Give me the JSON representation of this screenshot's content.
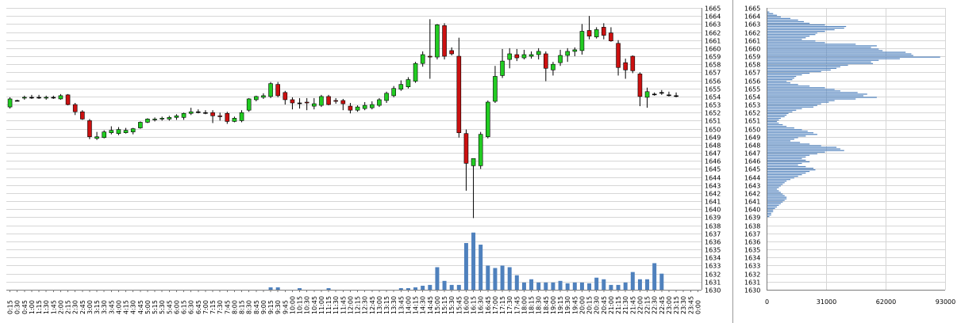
{
  "chart_data": [
    {
      "type": "candlestick",
      "title": "",
      "xlabel": "",
      "ylabel": "",
      "ylim": [
        1630,
        1665
      ],
      "grid": true,
      "y_ticks": [
        1630,
        1631,
        1632,
        1633,
        1634,
        1635,
        1636,
        1637,
        1638,
        1639,
        1640,
        1641,
        1642,
        1643,
        1644,
        1645,
        1646,
        1647,
        1648,
        1649,
        1650,
        1651,
        1652,
        1653,
        1654,
        1655,
        1656,
        1657,
        1658,
        1659,
        1660,
        1661,
        1662,
        1663,
        1664,
        1665
      ],
      "colors": {
        "up": "#22cc22",
        "down": "#cc1111",
        "doji": "#000000",
        "volume": "#4f81bd",
        "grid": "#d6d6d6"
      },
      "x_labels": [
        "0:15",
        "0:30",
        "0:45",
        "1:00",
        "1:15",
        "1:30",
        "1:45",
        "2:00",
        "2:15",
        "2:30",
        "2:45",
        "3:00",
        "3:15",
        "3:30",
        "3:45",
        "4:00",
        "4:15",
        "4:30",
        "4:45",
        "5:00",
        "5:15",
        "5:30",
        "5:45",
        "6:00",
        "6:15",
        "6:30",
        "6:45",
        "7:00",
        "7:15",
        "7:30",
        "7:45",
        "8:00",
        "8:15",
        "8:30",
        "8:45",
        "9:00",
        "9:15",
        "9:30",
        "9:45",
        "10:00",
        "10:15",
        "10:30",
        "10:45",
        "11:00",
        "11:15",
        "11:30",
        "11:45",
        "12:00",
        "12:15",
        "12:30",
        "12:45",
        "13:00",
        "13:15",
        "13:30",
        "13:45",
        "14:00",
        "14:15",
        "14:30",
        "14:45",
        "15:00",
        "15:15",
        "15:30",
        "15:45",
        "16:00",
        "16:15",
        "16:30",
        "16:45",
        "17:00",
        "17:15",
        "17:30",
        "17:45",
        "18:00",
        "18:15",
        "18:30",
        "18:45",
        "19:00",
        "19:15",
        "19:30",
        "19:45",
        "20:00",
        "20:15",
        "20:30",
        "20:45",
        "21:00",
        "21:15",
        "21:30",
        "21:45",
        "22:00",
        "22:15",
        "22:30",
        "22:45",
        "23:00",
        "23:15",
        "23:30",
        "23:45",
        "0:00"
      ],
      "candles": [
        {
          "o": 1652.7,
          "h": 1653.9,
          "l": 1652.5,
          "c": 1653.7
        },
        {
          "o": 1653.5,
          "h": 1653.6,
          "l": 1653.4,
          "c": 1653.5
        },
        {
          "o": 1653.8,
          "h": 1654.1,
          "l": 1653.6,
          "c": 1653.9
        },
        {
          "o": 1653.9,
          "h": 1654.2,
          "l": 1653.7,
          "c": 1653.9
        },
        {
          "o": 1653.9,
          "h": 1654.2,
          "l": 1653.7,
          "c": 1653.9
        },
        {
          "o": 1653.8,
          "h": 1654.1,
          "l": 1653.6,
          "c": 1653.9
        },
        {
          "o": 1653.9,
          "h": 1654.1,
          "l": 1653.7,
          "c": 1653.9
        },
        {
          "o": 1653.7,
          "h": 1654.3,
          "l": 1653.6,
          "c": 1654.1
        },
        {
          "o": 1654.2,
          "h": 1654.3,
          "l": 1652.9,
          "c": 1653.0
        },
        {
          "o": 1653.0,
          "h": 1653.2,
          "l": 1651.7,
          "c": 1652.1
        },
        {
          "o": 1652.1,
          "h": 1652.3,
          "l": 1651.1,
          "c": 1651.2
        },
        {
          "o": 1651.0,
          "h": 1651.2,
          "l": 1648.7,
          "c": 1649.0
        },
        {
          "o": 1648.8,
          "h": 1649.6,
          "l": 1648.6,
          "c": 1649.0
        },
        {
          "o": 1648.9,
          "h": 1649.8,
          "l": 1648.8,
          "c": 1649.6
        },
        {
          "o": 1649.5,
          "h": 1650.3,
          "l": 1649.3,
          "c": 1649.8
        },
        {
          "o": 1649.4,
          "h": 1650.2,
          "l": 1649.2,
          "c": 1649.9
        },
        {
          "o": 1649.5,
          "h": 1650.1,
          "l": 1649.4,
          "c": 1649.8
        },
        {
          "o": 1649.6,
          "h": 1650.1,
          "l": 1649.3,
          "c": 1650.0
        },
        {
          "o": 1650.1,
          "h": 1650.9,
          "l": 1650.0,
          "c": 1650.8
        },
        {
          "o": 1650.8,
          "h": 1651.3,
          "l": 1650.7,
          "c": 1651.2
        },
        {
          "o": 1651.1,
          "h": 1651.4,
          "l": 1650.9,
          "c": 1651.2
        },
        {
          "o": 1651.2,
          "h": 1651.5,
          "l": 1651.0,
          "c": 1651.3
        },
        {
          "o": 1651.2,
          "h": 1651.6,
          "l": 1651.0,
          "c": 1651.4
        },
        {
          "o": 1651.4,
          "h": 1651.8,
          "l": 1651.1,
          "c": 1651.6
        },
        {
          "o": 1651.4,
          "h": 1652.0,
          "l": 1651.1,
          "c": 1651.9
        },
        {
          "o": 1651.9,
          "h": 1652.6,
          "l": 1651.7,
          "c": 1652.1
        },
        {
          "o": 1652.1,
          "h": 1652.4,
          "l": 1651.9,
          "c": 1652.1
        },
        {
          "o": 1652.0,
          "h": 1652.3,
          "l": 1651.8,
          "c": 1652.0
        },
        {
          "o": 1652.0,
          "h": 1652.3,
          "l": 1650.7,
          "c": 1651.6
        },
        {
          "o": 1651.6,
          "h": 1652.0,
          "l": 1651.0,
          "c": 1651.5
        },
        {
          "o": 1651.9,
          "h": 1652.1,
          "l": 1650.6,
          "c": 1650.9
        },
        {
          "o": 1650.9,
          "h": 1651.5,
          "l": 1650.8,
          "c": 1651.3
        },
        {
          "o": 1651.0,
          "h": 1652.3,
          "l": 1650.8,
          "c": 1652.0
        },
        {
          "o": 1652.3,
          "h": 1653.8,
          "l": 1652.1,
          "c": 1653.7
        },
        {
          "o": 1653.6,
          "h": 1654.1,
          "l": 1653.4,
          "c": 1654.0
        },
        {
          "o": 1653.9,
          "h": 1654.4,
          "l": 1653.7,
          "c": 1654.1
        },
        {
          "o": 1654.0,
          "h": 1655.8,
          "l": 1653.8,
          "c": 1655.6
        },
        {
          "o": 1655.5,
          "h": 1655.8,
          "l": 1653.9,
          "c": 1654.1
        },
        {
          "o": 1654.5,
          "h": 1654.7,
          "l": 1653.0,
          "c": 1653.6
        },
        {
          "o": 1653.6,
          "h": 1653.9,
          "l": 1652.4,
          "c": 1653.2
        },
        {
          "o": 1653.2,
          "h": 1653.8,
          "l": 1652.5,
          "c": 1653.2
        },
        {
          "o": 1653.3,
          "h": 1653.8,
          "l": 1652.3,
          "c": 1653.2
        },
        {
          "o": 1652.8,
          "h": 1653.8,
          "l": 1652.4,
          "c": 1653.1
        },
        {
          "o": 1652.9,
          "h": 1654.2,
          "l": 1652.7,
          "c": 1654.0
        },
        {
          "o": 1654.0,
          "h": 1654.2,
          "l": 1652.9,
          "c": 1653.0
        },
        {
          "o": 1653.5,
          "h": 1653.8,
          "l": 1653.1,
          "c": 1653.4
        },
        {
          "o": 1653.5,
          "h": 1653.7,
          "l": 1652.3,
          "c": 1653.1
        },
        {
          "o": 1652.8,
          "h": 1653.2,
          "l": 1651.9,
          "c": 1652.3
        },
        {
          "o": 1652.3,
          "h": 1652.9,
          "l": 1652.1,
          "c": 1652.7
        },
        {
          "o": 1652.5,
          "h": 1653.3,
          "l": 1652.3,
          "c": 1652.9
        },
        {
          "o": 1652.6,
          "h": 1653.4,
          "l": 1652.4,
          "c": 1653.0
        },
        {
          "o": 1652.9,
          "h": 1653.8,
          "l": 1652.7,
          "c": 1653.6
        },
        {
          "o": 1653.5,
          "h": 1654.6,
          "l": 1653.2,
          "c": 1654.4
        },
        {
          "o": 1654.1,
          "h": 1655.3,
          "l": 1653.9,
          "c": 1655.0
        },
        {
          "o": 1654.9,
          "h": 1656.0,
          "l": 1654.7,
          "c": 1655.5
        },
        {
          "o": 1655.2,
          "h": 1656.4,
          "l": 1655.0,
          "c": 1656.1
        },
        {
          "o": 1655.9,
          "h": 1658.3,
          "l": 1655.7,
          "c": 1658.1
        },
        {
          "o": 1658.1,
          "h": 1659.6,
          "l": 1657.7,
          "c": 1659.2
        },
        {
          "o": 1659.0,
          "h": 1663.6,
          "l": 1656.2,
          "c": 1658.9
        },
        {
          "o": 1658.9,
          "h": 1663.0,
          "l": 1658.6,
          "c": 1662.9
        },
        {
          "o": 1662.8,
          "h": 1663.1,
          "l": 1658.6,
          "c": 1659.0
        },
        {
          "o": 1659.7,
          "h": 1660.1,
          "l": 1659.1,
          "c": 1659.3
        },
        {
          "o": 1659.0,
          "h": 1661.3,
          "l": 1648.9,
          "c": 1649.5
        },
        {
          "o": 1649.4,
          "h": 1649.9,
          "l": 1642.3,
          "c": 1645.7
        },
        {
          "o": 1645.4,
          "h": 1646.2,
          "l": 1638.9,
          "c": 1646.3
        },
        {
          "o": 1645.4,
          "h": 1649.6,
          "l": 1645.0,
          "c": 1649.3
        },
        {
          "o": 1649.0,
          "h": 1653.5,
          "l": 1648.8,
          "c": 1653.3
        },
        {
          "o": 1653.4,
          "h": 1657.8,
          "l": 1653.2,
          "c": 1656.5
        },
        {
          "o": 1656.6,
          "h": 1659.9,
          "l": 1656.3,
          "c": 1658.4
        },
        {
          "o": 1658.6,
          "h": 1660.0,
          "l": 1657.5,
          "c": 1659.3
        },
        {
          "o": 1659.2,
          "h": 1659.9,
          "l": 1658.4,
          "c": 1658.8
        },
        {
          "o": 1658.8,
          "h": 1659.8,
          "l": 1658.6,
          "c": 1659.2
        },
        {
          "o": 1659.0,
          "h": 1659.6,
          "l": 1658.7,
          "c": 1659.2
        },
        {
          "o": 1659.2,
          "h": 1660.0,
          "l": 1658.6,
          "c": 1659.6
        },
        {
          "o": 1659.3,
          "h": 1659.6,
          "l": 1655.9,
          "c": 1657.5
        },
        {
          "o": 1657.3,
          "h": 1658.3,
          "l": 1656.6,
          "c": 1658.0
        },
        {
          "o": 1658.2,
          "h": 1659.8,
          "l": 1657.8,
          "c": 1659.1
        },
        {
          "o": 1659.1,
          "h": 1660.0,
          "l": 1658.3,
          "c": 1659.6
        },
        {
          "o": 1659.6,
          "h": 1660.1,
          "l": 1659.0,
          "c": 1659.8
        },
        {
          "o": 1659.7,
          "h": 1663.0,
          "l": 1659.2,
          "c": 1662.1
        },
        {
          "o": 1662.2,
          "h": 1664.0,
          "l": 1661.1,
          "c": 1661.5
        },
        {
          "o": 1661.4,
          "h": 1662.6,
          "l": 1661.2,
          "c": 1662.3
        },
        {
          "o": 1662.6,
          "h": 1663.1,
          "l": 1661.1,
          "c": 1661.6
        },
        {
          "o": 1661.9,
          "h": 1662.6,
          "l": 1660.8,
          "c": 1660.9
        },
        {
          "o": 1660.6,
          "h": 1661.0,
          "l": 1656.6,
          "c": 1657.6
        },
        {
          "o": 1658.2,
          "h": 1658.7,
          "l": 1656.2,
          "c": 1657.3
        },
        {
          "o": 1659.0,
          "h": 1659.1,
          "l": 1656.9,
          "c": 1657.2
        },
        {
          "o": 1656.8,
          "h": 1657.0,
          "l": 1652.8,
          "c": 1654.0
        },
        {
          "o": 1653.9,
          "h": 1655.1,
          "l": 1652.6,
          "c": 1654.6
        },
        {
          "o": 1654.3,
          "h": 1654.5,
          "l": 1654.1,
          "c": 1654.3
        },
        {
          "o": 1654.5,
          "h": 1654.8,
          "l": 1654.2,
          "c": 1654.5
        },
        {
          "o": 1654.2,
          "h": 1654.6,
          "l": 1654.0,
          "c": 1654.2
        },
        {
          "o": 1654.1,
          "h": 1654.5,
          "l": 1653.9,
          "c": 1654.1
        },
        null,
        null,
        null
      ],
      "volume": [
        0,
        0,
        0,
        0,
        0,
        0,
        0,
        0,
        0,
        0,
        0,
        0,
        0,
        0,
        0,
        0,
        0,
        0,
        0,
        0,
        0,
        0,
        0,
        0,
        0,
        0,
        0,
        0,
        0,
        0,
        0,
        0,
        0,
        0,
        0,
        0,
        0.3,
        0.3,
        0,
        0,
        0.2,
        0,
        0,
        0,
        0.2,
        0,
        0,
        0,
        0,
        0,
        0,
        0,
        0,
        0,
        0.2,
        0.2,
        0.3,
        0.5,
        0.6,
        2.8,
        1.1,
        0.6,
        0.6,
        5.8,
        7.1,
        5.6,
        3.0,
        2.7,
        3.0,
        2.8,
        1.8,
        0.9,
        1.3,
        0.9,
        0.9,
        0.9,
        1.1,
        0.8,
        0.9,
        0.9,
        0.8,
        1.5,
        1.3,
        0.6,
        0.6,
        0.9,
        2.2,
        1.3,
        1.3,
        3.3,
        2.0,
        0,
        0,
        0,
        0,
        0
      ]
    },
    {
      "type": "horizontal-bar",
      "title": "",
      "xlabel": "",
      "ylabel": "",
      "ylim": [
        1630,
        1665
      ],
      "xlim": [
        0,
        93000
      ],
      "x_ticks": [
        0,
        31000,
        62000,
        93000
      ],
      "y_ticks": [
        1630,
        1631,
        1632,
        1633,
        1634,
        1635,
        1636,
        1637,
        1638,
        1639,
        1640,
        1641,
        1642,
        1643,
        1644,
        1645,
        1646,
        1647,
        1648,
        1649,
        1650,
        1651,
        1652,
        1653,
        1654,
        1655,
        1656,
        1657,
        1658,
        1659,
        1660,
        1661,
        1662,
        1663,
        1664,
        1665
      ],
      "bar_color": "#4f81bd",
      "levels": [
        1664.5,
        1664.3,
        1664.1,
        1663.9,
        1663.7,
        1663.5,
        1663.3,
        1663.1,
        1662.9,
        1662.7,
        1662.5,
        1662.3,
        1662.1,
        1661.9,
        1661.7,
        1661.5,
        1661.3,
        1661.1,
        1660.9,
        1660.7,
        1660.5,
        1660.3,
        1660.1,
        1659.9,
        1659.7,
        1659.5,
        1659.3,
        1659.1,
        1658.9,
        1658.7,
        1658.5,
        1658.3,
        1658.1,
        1657.9,
        1657.7,
        1657.5,
        1657.3,
        1657.1,
        1656.9,
        1656.7,
        1656.5,
        1656.3,
        1656.1,
        1655.9,
        1655.7,
        1655.5,
        1655.3,
        1655.1,
        1654.9,
        1654.7,
        1654.5,
        1654.3,
        1654.1,
        1653.9,
        1653.7,
        1653.5,
        1653.3,
        1653.1,
        1652.9,
        1652.7,
        1652.5,
        1652.3,
        1652.1,
        1651.9,
        1651.7,
        1651.5,
        1651.3,
        1651.1,
        1650.9,
        1650.7,
        1650.5,
        1650.3,
        1650.1,
        1649.9,
        1649.7,
        1649.5,
        1649.3,
        1649.1,
        1648.9,
        1648.7,
        1648.5,
        1648.3,
        1648.1,
        1647.9,
        1647.7,
        1647.5,
        1647.3,
        1647.1,
        1646.9,
        1646.7,
        1646.5,
        1646.3,
        1646.1,
        1645.9,
        1645.7,
        1645.5,
        1645.3,
        1645.1,
        1644.9,
        1644.7,
        1644.5,
        1644.3,
        1644.1,
        1643.9,
        1643.7,
        1643.5,
        1643.3,
        1643.1,
        1642.9,
        1642.7,
        1642.5,
        1642.3,
        1642.1,
        1641.9,
        1641.7,
        1641.5,
        1641.3,
        1641.1,
        1640.9,
        1640.7,
        1640.5,
        1640.3,
        1640.1,
        1639.9,
        1639.7,
        1639.5,
        1639.3,
        1639.1
      ],
      "values": [
        1000,
        3000,
        5000,
        7000,
        12000,
        16000,
        19000,
        22000,
        30000,
        41000,
        40000,
        35000,
        30000,
        26000,
        25000,
        22000,
        20000,
        18000,
        25000,
        30000,
        46000,
        57000,
        54000,
        58000,
        60000,
        72000,
        75000,
        76000,
        90000,
        69000,
        58000,
        54000,
        55000,
        42000,
        38000,
        36000,
        33000,
        28000,
        22000,
        18000,
        15000,
        14000,
        13000,
        10000,
        12000,
        16000,
        22000,
        30000,
        35000,
        38000,
        47000,
        52000,
        50000,
        57000,
        46000,
        35000,
        32000,
        28000,
        26000,
        24000,
        18000,
        15000,
        13000,
        11000,
        10000,
        9000,
        7000,
        6000,
        5000,
        6000,
        8000,
        10000,
        14000,
        18000,
        21000,
        24000,
        26000,
        20000,
        16000,
        14000,
        12000,
        17000,
        22000,
        28000,
        36000,
        38000,
        40000,
        30000,
        26000,
        22000,
        20000,
        18000,
        20000,
        22000,
        18000,
        16000,
        20000,
        24000,
        25000,
        22000,
        20000,
        18000,
        16000,
        14000,
        12000,
        10000,
        9000,
        8000,
        7000,
        6000,
        5000,
        6000,
        7000,
        8000,
        9000,
        10000,
        10000,
        9000,
        8000,
        7000,
        6000,
        5000,
        4000,
        3000,
        3000,
        2000,
        2000,
        1000
      ]
    }
  ]
}
